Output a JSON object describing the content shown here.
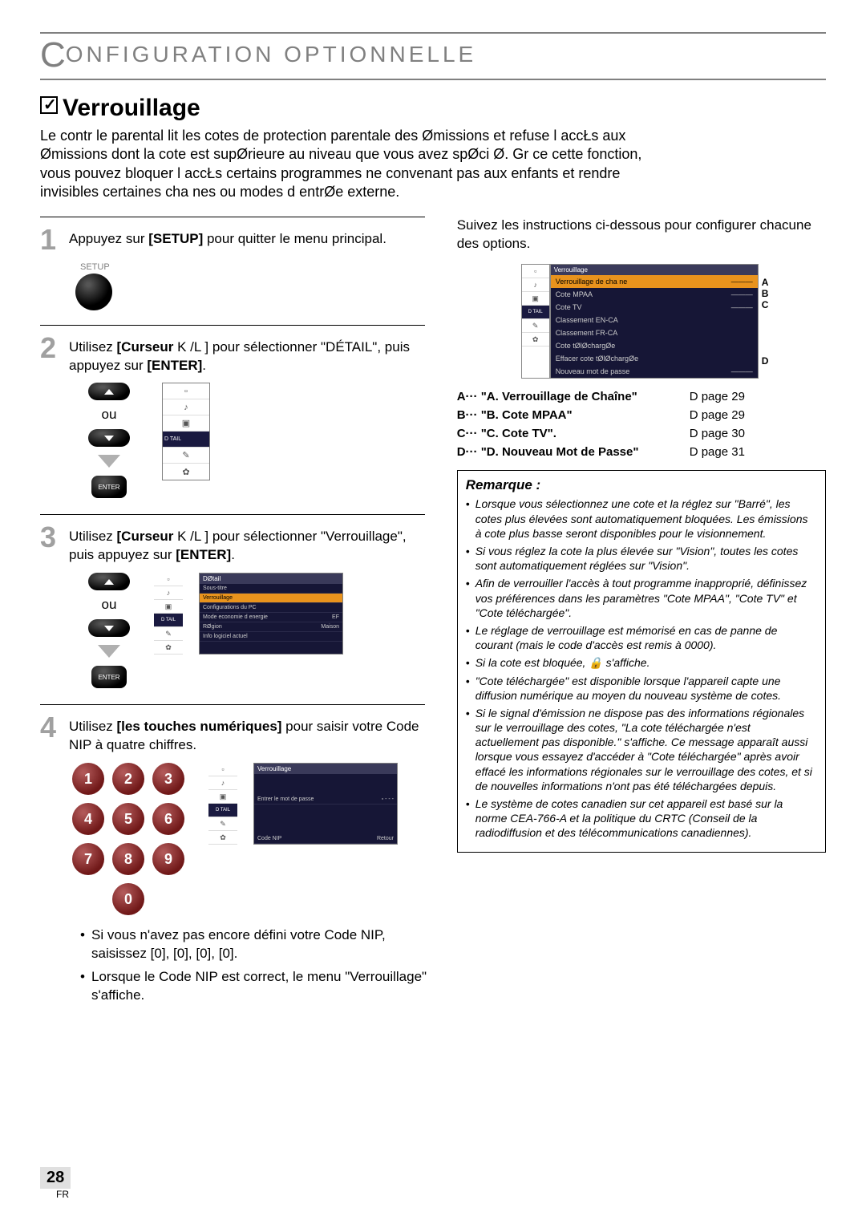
{
  "chapter": {
    "initial": "C",
    "rest": "ONFIGURATION  OPTIONNELLE"
  },
  "section": {
    "title": "Verrouillage"
  },
  "intro": "Le contr le parental lit les cotes de protection parentale des Ømissions et refuse l accŁs aux Ømissions dont la cote est supØrieure au niveau que vous avez spØci Ø. Gr ce   cette fonction, vous pouvez bloquer l accŁs   certains programmes ne convenant pas aux enfants et rendre invisibles certaines cha nes ou modes d entrØe externe.",
  "steps": {
    "s1": {
      "num": "1",
      "pre": "Appuyez sur ",
      "bold": "[SETUP]",
      "post": " pour quitter le menu principal."
    },
    "setup_label": "SETUP",
    "s2": {
      "num": "2",
      "pre": "Utilisez ",
      "bold1": "[Curseur ",
      "arrow": "K /L ]",
      "mid": " pour sélectionner \"DÉTAIL\", puis appuyez sur ",
      "bold2": "[ENTER]",
      "post": "."
    },
    "ou": "ou",
    "enter": "ENTER",
    "mini_detail": "D TAIL",
    "s3": {
      "num": "3",
      "pre": "Utilisez ",
      "bold1": "[Curseur ",
      "arrow": "K /L ]",
      "mid": " pour sélectionner \"Verrouillage\", puis appuyez sur ",
      "bold2": "[ENTER]",
      "post": "."
    },
    "osd3": {
      "title": "DØtail",
      "rows": [
        {
          "l": "Sous-titre",
          "r": ""
        },
        {
          "l": "Verrouillage",
          "r": "",
          "hl": true
        },
        {
          "l": "Configurations du PC",
          "r": ""
        },
        {
          "l": "Mode economie d energie",
          "r": "EF"
        },
        {
          "l": "RØgion",
          "r": "Maison"
        },
        {
          "l": "Info logiciel actuel",
          "r": ""
        }
      ]
    },
    "s4": {
      "num": "4",
      "pre": "Utilisez ",
      "bold": "[les touches numériques]",
      "post": " pour saisir votre Code NIP à quatre chiffres."
    },
    "keypad": [
      "1",
      "2",
      "3",
      "4",
      "5",
      "6",
      "7",
      "8",
      "9",
      "0"
    ],
    "osd4": {
      "title": "Verrouillage",
      "prompt": "Entrer le mot de passe",
      "footer_l": "Code NIP",
      "footer_r": "Retour"
    },
    "notes": [
      "Si vous n'avez pas encore défini votre Code NIP, saisissez [0], [0], [0], [0].",
      "Lorsque le Code NIP est correct, le menu \"Verrouillage\" s'affiche."
    ]
  },
  "right": {
    "intro": "Suivez les instructions ci-dessous pour configurer chacune des options.",
    "osd": {
      "title": "Verrouillage",
      "rows": [
        "Verrouillage de cha ne",
        "Cote MPAA",
        "Cote TV",
        "Classement EN-CA",
        "Classement FR-CA",
        "Cote tØlØchargØe",
        "Effacer cote tØlØchargØe",
        "Nouveau mot de passe"
      ],
      "labels": [
        "A",
        "B",
        "C",
        "D"
      ]
    },
    "refs": [
      {
        "k": "A···",
        "l": "\"A. Verrouillage de Chaîne\"",
        "p": "page 29"
      },
      {
        "k": "B···",
        "l": "\"B. Cote MPAA\"",
        "p": "page 29"
      },
      {
        "k": "C···",
        "l": "\"C. Cote TV\".",
        "p": "page 30"
      },
      {
        "k": "D···",
        "l": "\"D. Nouveau Mot de Passe\"",
        "p": "page 31"
      }
    ],
    "remarque_title": "Remarque :",
    "remarque": [
      "Lorsque vous sélectionnez une cote et la réglez sur \"Barré\", les cotes plus élevées sont automatiquement bloquées. Les émissions à cote plus basse seront disponibles pour le visionnement.",
      "Si vous réglez la cote la plus élevée sur \"Vision\", toutes les cotes sont automatiquement réglées sur \"Vision\".",
      "Afin de verrouiller l'accès à tout programme inapproprié, définissez vos préférences dans les paramètres \"Cote MPAA\", \"Cote TV\" et \"Cote téléchargée\".",
      "Le réglage de verrouillage est mémorisé en cas de panne de courant (mais le code d'accès est remis à 0000).",
      "Si la cote est bloquée, 🔒 s'affiche.",
      "\"Cote téléchargée\" est disponible lorsque l'appareil capte une diffusion numérique au moyen du nouveau système de cotes.",
      "Si le signal d'émission ne dispose pas des informations régionales sur le verrouillage des cotes, \"La cote téléchargée n'est actuellement pas disponible.\" s'affiche. Ce message apparaît aussi lorsque vous essayez d'accéder à \"Cote téléchargée\" après avoir effacé les informations régionales sur le verrouillage des cotes, et si de nouvelles informations n'ont pas été téléchargées depuis.",
      "Le système de cotes canadien sur cet appareil est basé sur la norme CEA-766-A et la politique du CRTC (Conseil de la radiodiffusion et des télécommunications canadiennes)."
    ]
  },
  "footer": {
    "page": "28",
    "lang": "FR"
  },
  "colors": {
    "accent_orange": "#e9931d",
    "osd_bg": "#161636",
    "keypad": "#701818",
    "gray": "#808080"
  }
}
